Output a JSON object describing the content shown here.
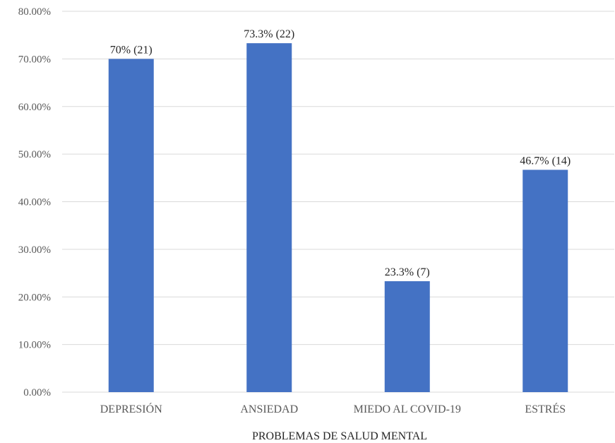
{
  "chart_data": {
    "type": "bar",
    "title": "",
    "xlabel": "PROBLEMAS DE SALUD MENTAL",
    "ylabel": "",
    "categories": [
      "DEPRESIÓN",
      "ANSIEDAD",
      "MIEDO AL COVID-19",
      "ESTRÉS"
    ],
    "values": [
      70.0,
      73.3,
      23.3,
      46.7
    ],
    "data_labels": [
      "70% (21)",
      "73.3% (22)",
      "23.3% (7)",
      "46.7% (14)"
    ],
    "ylim": [
      0,
      80
    ],
    "yticks": [
      0,
      10,
      20,
      30,
      40,
      50,
      60,
      70,
      80
    ],
    "ytick_labels": [
      "0.00%",
      "10.00%",
      "20.00%",
      "30.00%",
      "40.00%",
      "50.00%",
      "60.00%",
      "70.00%",
      "80.00%"
    ],
    "grid": true,
    "legend": "none",
    "bar_color": "#4472c4",
    "grid_color": "#d9d9d9"
  }
}
